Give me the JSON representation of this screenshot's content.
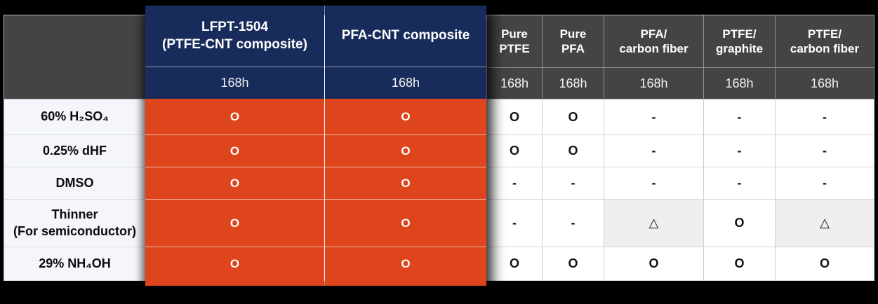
{
  "table": {
    "corner_label": "",
    "columns": [
      {
        "label": "LFPT-1504\n(PTFE-CNT composite)",
        "duration": "168h",
        "highlighted": true
      },
      {
        "label": "PFA-CNT composite",
        "duration": "168h",
        "highlighted": true
      },
      {
        "label": "Pure\nPTFE",
        "duration": "168h",
        "highlighted": false
      },
      {
        "label": "Pure\nPFA",
        "duration": "168h",
        "highlighted": false
      },
      {
        "label": "PFA/\ncarbon fiber",
        "duration": "168h",
        "highlighted": false
      },
      {
        "label": "PTFE/\ngraphite",
        "duration": "168h",
        "highlighted": false
      },
      {
        "label": "PTFE/\ncarbon fiber",
        "duration": "168h",
        "highlighted": false
      }
    ],
    "rows": [
      {
        "label": "60% H₂SO₄",
        "values": [
          "O",
          "O",
          "O",
          "O",
          "-",
          "-",
          "-"
        ]
      },
      {
        "label": "0.25% dHF",
        "values": [
          "O",
          "O",
          "O",
          "O",
          "-",
          "-",
          "-"
        ]
      },
      {
        "label": "DMSO",
        "values": [
          "O",
          "O",
          "-",
          "-",
          "-",
          "-",
          "-"
        ]
      },
      {
        "label": "Thinner\n(For semiconductor)",
        "values": [
          "O",
          "O",
          "-",
          "-",
          "△",
          "O",
          "△"
        ]
      },
      {
        "label": "29% NH₄OH",
        "values": [
          "O",
          "O",
          "O",
          "O",
          "O",
          "O",
          "O"
        ]
      }
    ],
    "symbols": {
      "good": "O",
      "not_tested": "-",
      "partial": "△"
    },
    "colors": {
      "highlight_header_bg": "#182c5b",
      "highlight_body_bg": "#de451c",
      "header_bg": "#444444",
      "row_label_bg": "#f4f6fc",
      "shaded_cell_bg": "#efefef",
      "background": "#000000"
    }
  },
  "chart_data": {
    "type": "table",
    "title": "Chemical resistance comparison (168h immersion)",
    "row_header": [
      "60% H₂SO₄",
      "0.25% dHF",
      "DMSO",
      "Thinner (For semiconductor)",
      "29% NH₄OH"
    ],
    "column_header": [
      "LFPT-1504 (PTFE-CNT composite) 168h",
      "PFA-CNT composite 168h",
      "Pure PTFE 168h",
      "Pure PFA 168h",
      "PFA/carbon fiber 168h",
      "PTFE/graphite 168h",
      "PTFE/carbon fiber 168h"
    ],
    "cells": [
      [
        "O",
        "O",
        "O",
        "O",
        "-",
        "-",
        "-"
      ],
      [
        "O",
        "O",
        "O",
        "O",
        "-",
        "-",
        "-"
      ],
      [
        "O",
        "O",
        "-",
        "-",
        "-",
        "-",
        "-"
      ],
      [
        "O",
        "O",
        "-",
        "-",
        "△",
        "O",
        "△"
      ],
      [
        "O",
        "O",
        "O",
        "O",
        "O",
        "O",
        "O"
      ]
    ],
    "legend_position": "none",
    "notes": "First two columns highlighted in navy/orange overlay"
  }
}
